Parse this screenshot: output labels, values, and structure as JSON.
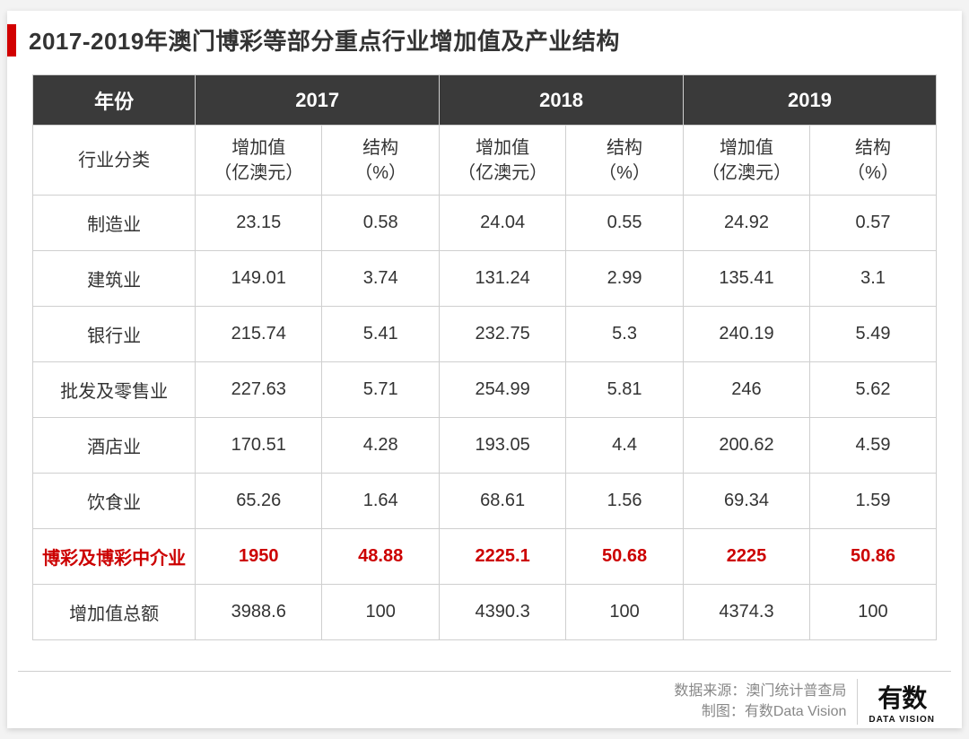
{
  "title": "2017-2019年澳门博彩等部分重点行业增加值及产业结构",
  "table": {
    "type": "table",
    "background_color": "#ffffff",
    "border_color": "#cfcfcf",
    "header_bg": "#3a3a3a",
    "header_text_color": "#ffffff",
    "highlight_color": "#cc0000",
    "body_text_color": "#333333",
    "title_fontsize": 26,
    "header_fontsize": 22,
    "cell_fontsize": 20,
    "col_year_label": "年份",
    "col_category_label": "行业分类",
    "years": [
      "2017",
      "2018",
      "2019"
    ],
    "sub_headers": {
      "value": "增加值\n（亿澳元）",
      "share": "结构\n（%）"
    },
    "rows": [
      {
        "label": "制造业",
        "v17": "23.15",
        "s17": "0.58",
        "v18": "24.04",
        "s18": "0.55",
        "v19": "24.92",
        "s19": "0.57",
        "highlight": false
      },
      {
        "label": "建筑业",
        "v17": "149.01",
        "s17": "3.74",
        "v18": "131.24",
        "s18": "2.99",
        "v19": "135.41",
        "s19": "3.1",
        "highlight": false
      },
      {
        "label": "银行业",
        "v17": "215.74",
        "s17": "5.41",
        "v18": "232.75",
        "s18": "5.3",
        "v19": "240.19",
        "s19": "5.49",
        "highlight": false
      },
      {
        "label": "批发及零售业",
        "v17": "227.63",
        "s17": "5.71",
        "v18": "254.99",
        "s18": "5.81",
        "v19": "246",
        "s19": "5.62",
        "highlight": false
      },
      {
        "label": "酒店业",
        "v17": "170.51",
        "s17": "4.28",
        "v18": "193.05",
        "s18": "4.4",
        "v19": "200.62",
        "s19": "4.59",
        "highlight": false
      },
      {
        "label": "饮食业",
        "v17": "65.26",
        "s17": "1.64",
        "v18": "68.61",
        "s18": "1.56",
        "v19": "69.34",
        "s19": "1.59",
        "highlight": false
      },
      {
        "label": "博彩及博彩中介业",
        "v17": "1950",
        "s17": "48.88",
        "v18": "2225.1",
        "s18": "50.68",
        "v19": "2225",
        "s19": "50.86",
        "highlight": true
      },
      {
        "label": "增加值总额",
        "v17": "3988.6",
        "s17": "100",
        "v18": "4390.3",
        "s18": "100",
        "v19": "4374.3",
        "s19": "100",
        "highlight": false
      }
    ]
  },
  "footer": {
    "source_label": "数据来源：",
    "source_value": "澳门统计普查局",
    "credit_label": "制图：",
    "credit_value": "有数Data Vision",
    "logo_main": "有数",
    "logo_sub": "DATA VISION",
    "footer_text_color": "#888888",
    "footer_fontsize": 16
  },
  "accent_bar_color": "#d20000"
}
